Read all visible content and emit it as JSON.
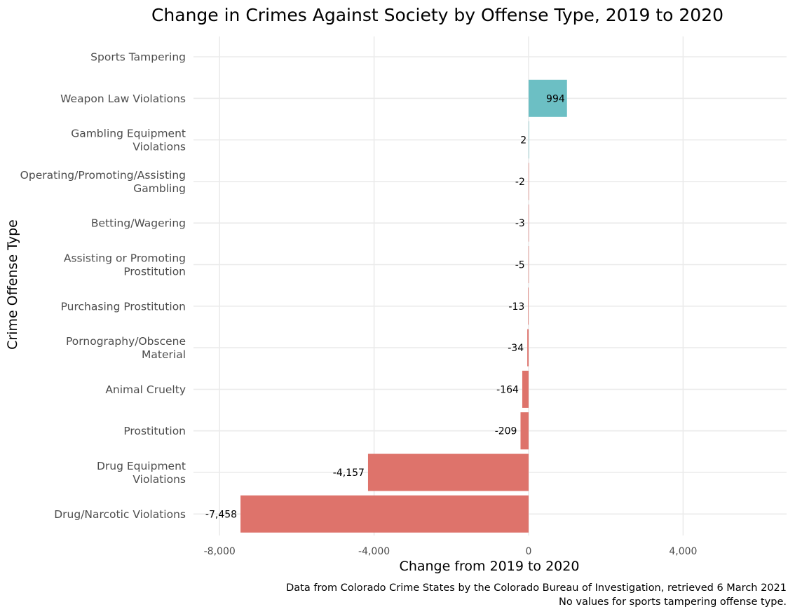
{
  "chart_data": {
    "type": "bar",
    "orientation": "horizontal",
    "title": "Change in Crimes Against Society by Offense Type, 2019 to 2020",
    "xlabel": "Change from 2019 to 2020",
    "ylabel": "Crime Offense Type",
    "xlim": [
      -8000,
      6300
    ],
    "xticks": [
      -8000,
      -4000,
      0,
      4000
    ],
    "xtick_labels": [
      "-8,000",
      "-4,000",
      "0",
      "4,000"
    ],
    "grid": true,
    "categories": [
      "Sports Tampering",
      "Weapon Law Violations",
      "Gambling Equipment Violations",
      "Operating/Promoting/Assisting Gambling",
      "Betting/Wagering",
      "Assisting or Promoting Prostitution",
      "Purchasing Prostitution",
      "Pornography/Obscene Material",
      "Animal Cruelty",
      "Prostitution",
      "Drug Equipment Violations",
      "Drug/Narcotic Violations"
    ],
    "category_lines": [
      [
        "Sports Tampering"
      ],
      [
        "Weapon Law Violations"
      ],
      [
        "Gambling Equipment",
        "Violations"
      ],
      [
        "Operating/Promoting/Assisting",
        "Gambling"
      ],
      [
        "Betting/Wagering"
      ],
      [
        "Assisting or Promoting",
        "Prostitution"
      ],
      [
        "Purchasing Prostitution"
      ],
      [
        "Pornography/Obscene",
        "Material"
      ],
      [
        "Animal Cruelty"
      ],
      [
        "Prostitution"
      ],
      [
        "Drug Equipment",
        "Violations"
      ],
      [
        "Drug/Narcotic Violations"
      ]
    ],
    "values": [
      null,
      994,
      2,
      -2,
      -3,
      -5,
      -13,
      -34,
      -164,
      -209,
      -4157,
      -7458
    ],
    "value_labels": [
      "",
      "994",
      "2",
      "-2",
      "-3",
      "-5",
      "-13",
      "-34",
      "-164",
      "-209",
      "-4,157",
      "-7,458"
    ],
    "colors": {
      "positive": "#6cbfc4",
      "negative": "#de736b"
    },
    "caption": [
      "Data from Colorado Crime States by the Colorado Bureau of Investigation, retrieved 6 March 2021",
      "No values for sports tampering offense type."
    ]
  }
}
